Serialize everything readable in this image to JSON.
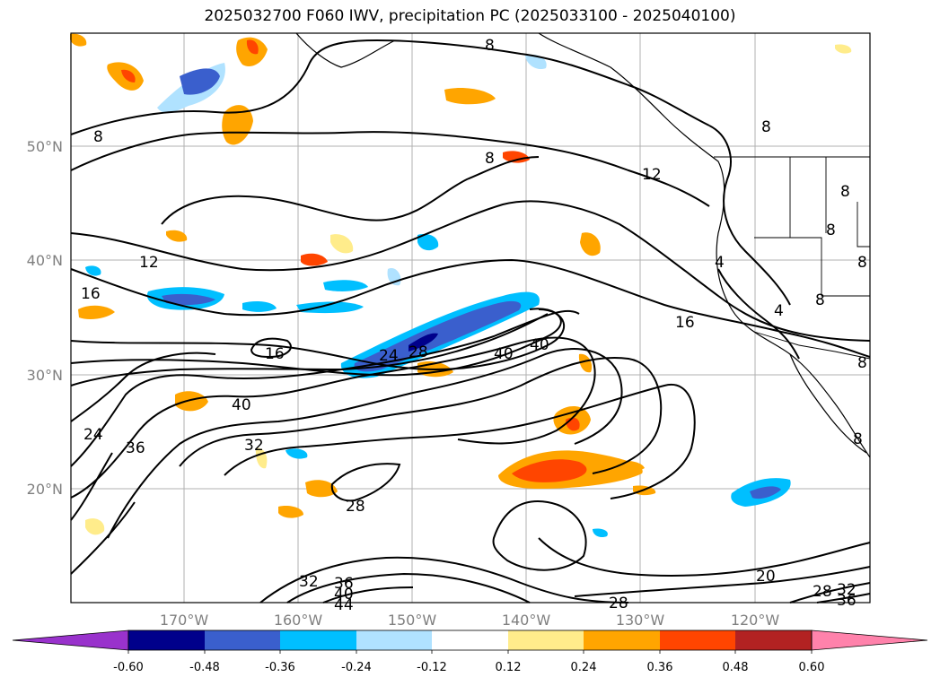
{
  "title": "2025032700 F060 IWV, precipitation PC (2025033100 - 2025040100)",
  "map": {
    "lat_labels": [
      "50°N",
      "40°N",
      "30°N",
      "20°N"
    ],
    "lon_labels": [
      "170°W",
      "160°W",
      "150°W",
      "140°W",
      "130°W",
      "120°W"
    ],
    "contour_labels": [
      "8",
      "8",
      "8",
      "8",
      "8",
      "8",
      "8",
      "12",
      "12",
      "16",
      "16",
      "16",
      "24",
      "28",
      "40",
      "40",
      "40",
      "24",
      "36",
      "32",
      "28",
      "32",
      "36",
      "40",
      "44",
      "28",
      "20",
      "28",
      "32",
      "36",
      "4",
      "4",
      "8",
      "8",
      "8"
    ]
  },
  "colorbar": {
    "ticks": [
      "-0.60",
      "-0.48",
      "-0.36",
      "-0.24",
      "-0.12",
      "0.12",
      "0.24",
      "0.36",
      "0.48",
      "0.60"
    ],
    "colors": {
      "under": "#9932cc",
      "bins": [
        "#00008b",
        "#3a5fcd",
        "#00bfff",
        "#b0e2ff",
        "#ffffff",
        "#ffec8b",
        "#ffa500",
        "#ff4500",
        "#b22222",
        "#ff82ab"
      ],
      "over": "#ff82ab"
    }
  }
}
